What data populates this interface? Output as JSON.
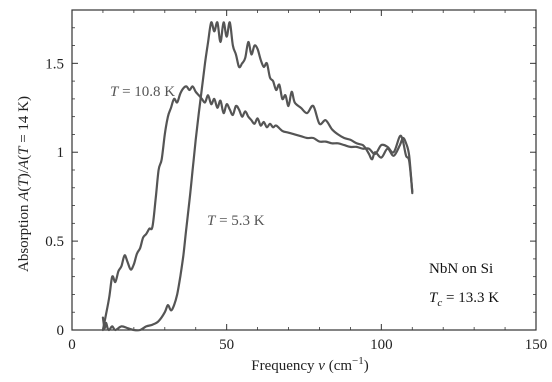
{
  "chart_data": {
    "type": "line",
    "xlabel": "Frequency ν (cm⁻¹)",
    "ylabel": "Absorption A(T)/A(T = 14 K)",
    "xlim": [
      0,
      150
    ],
    "ylim": [
      0,
      1.8
    ],
    "x_ticks": [
      0,
      50,
      100,
      150
    ],
    "y_ticks": [
      0,
      0.5,
      1,
      1.5
    ],
    "grid": false,
    "annotations": [
      {
        "text": "T = 10.8 K",
        "for_series": "T = 10.8 K"
      },
      {
        "text": "T = 5.3 K",
        "for_series": "T = 5.3 K"
      },
      {
        "text": "NbN on Si"
      },
      {
        "text": "Tc = 13.3 K"
      }
    ],
    "series": [
      {
        "name": "T = 10.8 K",
        "x": [
          10,
          10.8,
          12,
          13,
          14,
          15,
          16,
          17,
          18,
          19,
          20,
          21,
          22,
          23,
          24,
          25,
          26,
          27,
          28,
          29,
          30,
          31,
          32,
          33,
          34,
          35,
          36,
          37,
          38,
          39,
          40,
          41,
          42,
          43,
          44,
          45,
          46,
          47,
          48,
          49,
          50,
          51,
          52,
          53,
          54,
          55,
          56,
          57,
          58,
          59,
          60,
          61,
          62,
          63,
          64,
          65,
          66,
          68,
          70,
          72,
          74,
          76,
          78,
          80,
          82,
          84,
          86,
          88,
          90,
          92,
          94,
          96,
          98,
          100,
          102,
          104,
          106,
          107,
          108,
          109,
          110
        ],
        "values": [
          0.0,
          0.07,
          0.18,
          0.3,
          0.27,
          0.33,
          0.36,
          0.42,
          0.38,
          0.34,
          0.37,
          0.43,
          0.46,
          0.52,
          0.54,
          0.57,
          0.58,
          0.73,
          0.9,
          0.96,
          1.1,
          1.2,
          1.25,
          1.3,
          1.28,
          1.33,
          1.36,
          1.37,
          1.35,
          1.37,
          1.34,
          1.32,
          1.3,
          1.28,
          1.32,
          1.27,
          1.3,
          1.25,
          1.29,
          1.22,
          1.27,
          1.24,
          1.21,
          1.26,
          1.24,
          1.2,
          1.23,
          1.2,
          1.18,
          1.16,
          1.19,
          1.15,
          1.17,
          1.14,
          1.16,
          1.14,
          1.15,
          1.12,
          1.11,
          1.1,
          1.09,
          1.08,
          1.08,
          1.06,
          1.06,
          1.05,
          1.05,
          1.04,
          1.03,
          1.03,
          1.02,
          1.02,
          0.99,
          1.04,
          1.03,
          1.0,
          1.09,
          1.06,
          0.98,
          0.95,
          0.78
        ]
      },
      {
        "name": "T = 5.3 K",
        "x": [
          10,
          10.5,
          11,
          11.5,
          12,
          13,
          14,
          16,
          18,
          20,
          22,
          24,
          26,
          28,
          30,
          31,
          32,
          33,
          34,
          35,
          36,
          37,
          38,
          39,
          40,
          41,
          42,
          43,
          44,
          45,
          46,
          47,
          48,
          49,
          50,
          51,
          52,
          53,
          54,
          55,
          56,
          57,
          58,
          59,
          60,
          61,
          62,
          63,
          64,
          65,
          66,
          67,
          68,
          69,
          70,
          71,
          72,
          74,
          76,
          78,
          80,
          82,
          84,
          86,
          88,
          90,
          92,
          94,
          95,
          96,
          97,
          98,
          100,
          102,
          104,
          106,
          107,
          108,
          109,
          110
        ],
        "values": [
          0.07,
          0.01,
          0.04,
          0.01,
          0.0,
          0.02,
          0.0,
          0.02,
          0.01,
          0.0,
          0.0,
          0.02,
          0.03,
          0.05,
          0.1,
          0.14,
          0.11,
          0.14,
          0.2,
          0.3,
          0.42,
          0.58,
          0.73,
          0.9,
          1.07,
          1.22,
          1.36,
          1.5,
          1.62,
          1.73,
          1.68,
          1.73,
          1.62,
          1.73,
          1.65,
          1.73,
          1.6,
          1.55,
          1.48,
          1.5,
          1.53,
          1.62,
          1.55,
          1.6,
          1.58,
          1.52,
          1.48,
          1.5,
          1.42,
          1.4,
          1.35,
          1.38,
          1.3,
          1.32,
          1.26,
          1.34,
          1.28,
          1.25,
          1.22,
          1.26,
          1.16,
          1.18,
          1.13,
          1.1,
          1.08,
          1.07,
          1.05,
          1.04,
          1.02,
          0.99,
          0.96,
          1.0,
          0.97,
          1.02,
          0.98,
          1.04,
          1.08,
          1.05,
          0.98,
          0.77
        ]
      }
    ]
  }
}
